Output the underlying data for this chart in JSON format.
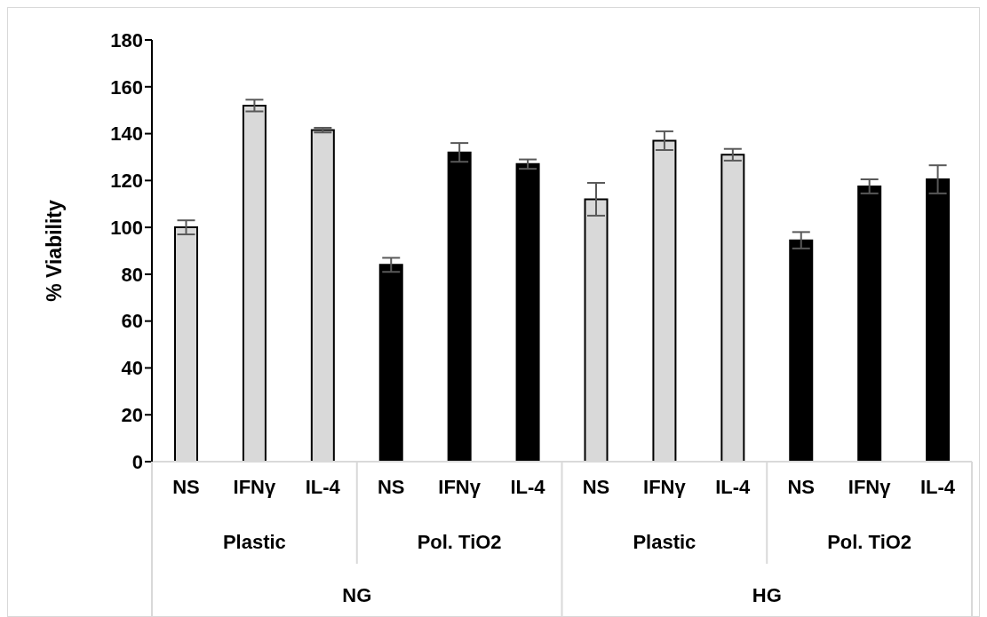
{
  "chart_data": {
    "type": "bar",
    "ylabel": "% Viability",
    "categories": [
      "NS",
      "IFNγ",
      "IL-4",
      "NS",
      "IFNγ",
      "IL-4",
      "NS",
      "IFNγ",
      "IL-4",
      "NS",
      "IFNγ",
      "IL-4"
    ],
    "values": [
      100,
      152,
      141.5,
      84,
      132,
      127,
      112,
      137,
      131,
      94.5,
      117.5,
      120.5
    ],
    "errors": [
      3,
      2.5,
      1,
      3,
      4,
      2,
      7,
      4,
      2.5,
      3.5,
      3,
      6
    ],
    "colors": [
      "#d9d9d9",
      "#d9d9d9",
      "#d9d9d9",
      "#000000",
      "#000000",
      "#000000",
      "#d9d9d9",
      "#d9d9d9",
      "#d9d9d9",
      "#000000",
      "#000000",
      "#000000"
    ],
    "annotations": [
      "Plastic",
      "Pol. TiO2",
      "Plastic",
      "Pol. TiO2",
      "NG",
      "HG"
    ],
    "ylim": [
      0,
      180
    ],
    "yticks": [
      0,
      20,
      40,
      60,
      80,
      100,
      120,
      140,
      160,
      180
    ],
    "grid": false,
    "legend": false
  }
}
